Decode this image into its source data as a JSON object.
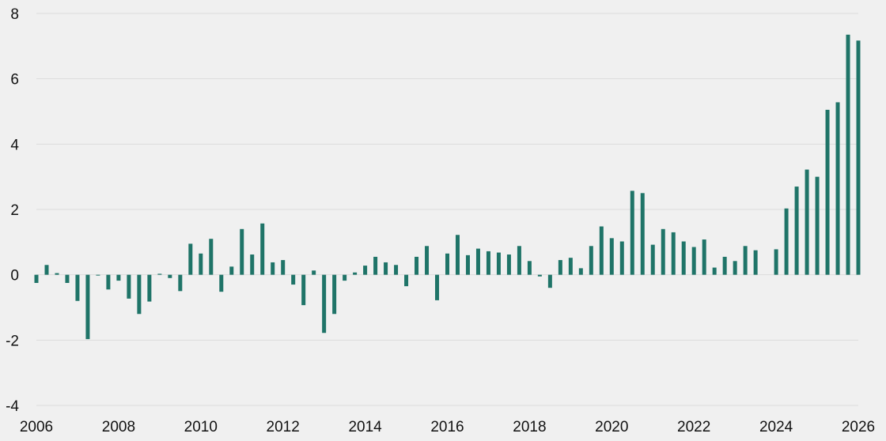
{
  "chart_data": {
    "type": "bar",
    "title": "",
    "xlabel": "",
    "ylabel": "",
    "grid": true,
    "legend": "none",
    "bar_color": "#1f7468",
    "background": "#f0f0f0",
    "xlim": [
      2006,
      2026
    ],
    "ylim": [
      -4,
      8
    ],
    "x_ticks": [
      2006,
      2008,
      2010,
      2012,
      2014,
      2016,
      2018,
      2020,
      2022,
      2024,
      2026
    ],
    "y_ticks": [
      -4,
      -2,
      0,
      2,
      4,
      6,
      8
    ],
    "series": [
      {
        "x": [
          2006.0,
          2006.25,
          2006.5,
          2006.75,
          2007.0,
          2007.25,
          2007.5,
          2007.75,
          2008.0,
          2008.25,
          2008.5,
          2008.75,
          2009.0,
          2009.25,
          2009.5,
          2009.75,
          2010.0,
          2010.25,
          2010.5,
          2010.75,
          2011.0,
          2011.25,
          2011.5,
          2011.75,
          2012.0,
          2012.25,
          2012.5,
          2012.75,
          2013.0,
          2013.25,
          2013.5,
          2013.75,
          2014.0,
          2014.25,
          2014.5,
          2014.75,
          2015.0,
          2015.25,
          2015.5,
          2015.75,
          2016.0,
          2016.25,
          2016.5,
          2016.75,
          2017.0,
          2017.25,
          2017.5,
          2017.75,
          2018.0,
          2018.25,
          2018.5,
          2018.75,
          2019.0,
          2019.25,
          2019.5,
          2019.75,
          2020.0,
          2020.25,
          2020.5,
          2020.75,
          2021.0,
          2021.25,
          2021.5,
          2021.75,
          2022.0,
          2022.25,
          2022.5,
          2022.75,
          2023.0,
          2023.25,
          2023.5,
          2023.75,
          2024.0,
          2024.25,
          2024.5,
          2024.75,
          2025.0,
          2025.25,
          2025.5,
          2025.75,
          2026.0
        ],
        "values": [
          -0.25,
          0.3,
          0.05,
          -0.25,
          -0.8,
          -1.97,
          -0.01,
          -0.45,
          -0.18,
          -0.73,
          -1.2,
          -0.82,
          0.03,
          -0.1,
          -0.5,
          0.95,
          0.65,
          1.1,
          -0.52,
          0.25,
          1.4,
          0.62,
          1.57,
          0.38,
          0.45,
          -0.3,
          -0.93,
          0.13,
          -1.78,
          -1.2,
          -0.18,
          0.07,
          0.28,
          0.55,
          0.38,
          0.3,
          -0.35,
          0.55,
          0.88,
          -0.78,
          0.65,
          1.22,
          0.6,
          0.8,
          0.72,
          0.68,
          0.62,
          0.88,
          0.42,
          -0.05,
          -0.4,
          0.45,
          0.52,
          0.2,
          0.88,
          1.48,
          1.12,
          1.02,
          2.57,
          2.5,
          0.92,
          1.4,
          1.3,
          1.02,
          0.85,
          1.08,
          0.22,
          0.55,
          0.42,
          0.88,
          0.75,
          0.0,
          0.78,
          2.03,
          2.7,
          3.22,
          3.0,
          5.05,
          5.28,
          7.35,
          7.17
        ]
      }
    ]
  }
}
